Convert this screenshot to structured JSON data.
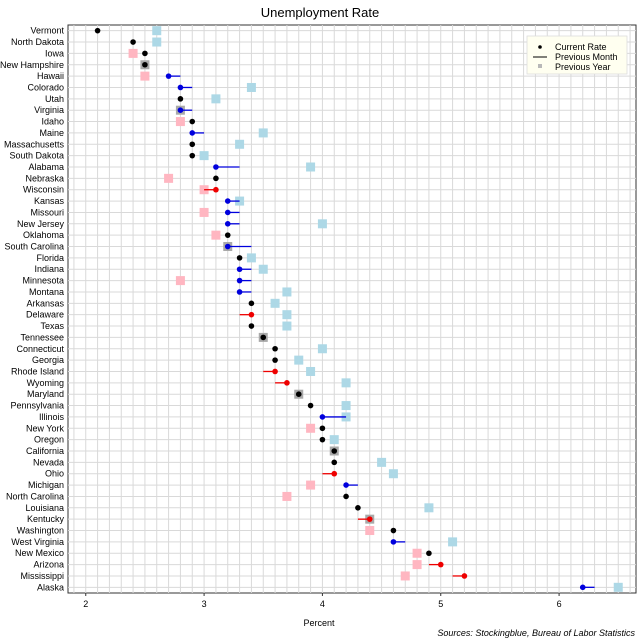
{
  "chart_data": {
    "type": "scatter",
    "title": "Unemployment Rate",
    "xlabel": "Percent",
    "ylabel": "",
    "xlim": [
      1.85,
      6.65
    ],
    "x_ticks": [
      "2",
      "3",
      "4",
      "5",
      "6"
    ],
    "x_tick_values": [
      2,
      3,
      4,
      5,
      6
    ],
    "legend_position": "top-right",
    "legend": {
      "current": "Current Rate",
      "previous_month": "Previous Month",
      "previous_year": "Previous Year"
    },
    "source": "Sources: Stockingblue, Bureau of Labor Statistics",
    "colors": {
      "unchanged": "#000000",
      "decrease": "#0000dd",
      "increase": "#ee0000",
      "year_lower": "#add8e6",
      "year_higher": "#ffb6c1",
      "year_same": "#a9a9a9",
      "grid": "#d9d9d9",
      "legend_bg": "#fffff0"
    },
    "series": [
      {
        "name": "Current Rate",
        "values_key": "states.current"
      },
      {
        "name": "Previous Month",
        "values_key": "states.previous_month"
      },
      {
        "name": "Previous Year",
        "values_key": "states.previous_year"
      }
    ],
    "states": [
      {
        "state": "Vermont",
        "current": 2.1,
        "previous_month": 2.1,
        "previous_year": 2.6
      },
      {
        "state": "North Dakota",
        "current": 2.4,
        "previous_month": 2.4,
        "previous_year": 2.6
      },
      {
        "state": "Iowa",
        "current": 2.5,
        "previous_month": 2.5,
        "previous_year": 2.4
      },
      {
        "state": "New Hampshire",
        "current": 2.5,
        "previous_month": 2.5,
        "previous_year": 2.5
      },
      {
        "state": "Hawaii",
        "current": 2.7,
        "previous_month": 2.8,
        "previous_year": 2.5
      },
      {
        "state": "Colorado",
        "current": 2.8,
        "previous_month": 2.9,
        "previous_year": 3.4
      },
      {
        "state": "Utah",
        "current": 2.8,
        "previous_month": 2.8,
        "previous_year": 3.1
      },
      {
        "state": "Virginia",
        "current": 2.8,
        "previous_month": 2.9,
        "previous_year": 2.8
      },
      {
        "state": "Idaho",
        "current": 2.9,
        "previous_month": 2.9,
        "previous_year": 2.8
      },
      {
        "state": "Maine",
        "current": 2.9,
        "previous_month": 3.0,
        "previous_year": 3.5
      },
      {
        "state": "Massachusetts",
        "current": 2.9,
        "previous_month": 2.9,
        "previous_year": 3.3
      },
      {
        "state": "South Dakota",
        "current": 2.9,
        "previous_month": 2.9,
        "previous_year": 3.0
      },
      {
        "state": "Alabama",
        "current": 3.1,
        "previous_month": 3.3,
        "previous_year": 3.9
      },
      {
        "state": "Nebraska",
        "current": 3.1,
        "previous_month": 3.1,
        "previous_year": 2.7
      },
      {
        "state": "Wisconsin",
        "current": 3.1,
        "previous_month": 3.0,
        "previous_year": 3.0
      },
      {
        "state": "Kansas",
        "current": 3.2,
        "previous_month": 3.3,
        "previous_year": 3.3
      },
      {
        "state": "Missouri",
        "current": 3.2,
        "previous_month": 3.3,
        "previous_year": 3.0
      },
      {
        "state": "New Jersey",
        "current": 3.2,
        "previous_month": 3.3,
        "previous_year": 4.0
      },
      {
        "state": "Oklahoma",
        "current": 3.2,
        "previous_month": 3.2,
        "previous_year": 3.1
      },
      {
        "state": "South Carolina",
        "current": 3.2,
        "previous_month": 3.4,
        "previous_year": 3.2
      },
      {
        "state": "Florida",
        "current": 3.3,
        "previous_month": 3.3,
        "previous_year": 3.4
      },
      {
        "state": "Indiana",
        "current": 3.3,
        "previous_month": 3.4,
        "previous_year": 3.5
      },
      {
        "state": "Minnesota",
        "current": 3.3,
        "previous_month": 3.4,
        "previous_year": 2.8
      },
      {
        "state": "Montana",
        "current": 3.3,
        "previous_month": 3.4,
        "previous_year": 3.7
      },
      {
        "state": "Arkansas",
        "current": 3.4,
        "previous_month": 3.4,
        "previous_year": 3.6
      },
      {
        "state": "Delaware",
        "current": 3.4,
        "previous_month": 3.3,
        "previous_year": 3.7
      },
      {
        "state": "Texas",
        "current": 3.4,
        "previous_month": 3.4,
        "previous_year": 3.7
      },
      {
        "state": "Tennessee",
        "current": 3.5,
        "previous_month": 3.5,
        "previous_year": 3.5
      },
      {
        "state": "Connecticut",
        "current": 3.6,
        "previous_month": 3.6,
        "previous_year": 4.0
      },
      {
        "state": "Georgia",
        "current": 3.6,
        "previous_month": 3.6,
        "previous_year": 3.8
      },
      {
        "state": "Rhode Island",
        "current": 3.6,
        "previous_month": 3.5,
        "previous_year": 3.9
      },
      {
        "state": "Wyoming",
        "current": 3.7,
        "previous_month": 3.6,
        "previous_year": 4.2
      },
      {
        "state": "Maryland",
        "current": 3.8,
        "previous_month": 3.8,
        "previous_year": 3.8
      },
      {
        "state": "Pennsylvania",
        "current": 3.9,
        "previous_month": 3.9,
        "previous_year": 4.2
      },
      {
        "state": "Illinois",
        "current": 4.0,
        "previous_month": 4.2,
        "previous_year": 4.2
      },
      {
        "state": "New York",
        "current": 4.0,
        "previous_month": 4.0,
        "previous_year": 3.9
      },
      {
        "state": "Oregon",
        "current": 4.0,
        "previous_month": 4.0,
        "previous_year": 4.1
      },
      {
        "state": "California",
        "current": 4.1,
        "previous_month": 4.1,
        "previous_year": 4.1
      },
      {
        "state": "Nevada",
        "current": 4.1,
        "previous_month": 4.1,
        "previous_year": 4.5
      },
      {
        "state": "Ohio",
        "current": 4.1,
        "previous_month": 4.0,
        "previous_year": 4.6
      },
      {
        "state": "Michigan",
        "current": 4.2,
        "previous_month": 4.3,
        "previous_year": 3.9
      },
      {
        "state": "North Carolina",
        "current": 4.2,
        "previous_month": 4.2,
        "previous_year": 3.7
      },
      {
        "state": "Louisiana",
        "current": 4.3,
        "previous_month": 4.3,
        "previous_year": 4.9
      },
      {
        "state": "Kentucky",
        "current": 4.4,
        "previous_month": 4.3,
        "previous_year": 4.4
      },
      {
        "state": "Washington",
        "current": 4.6,
        "previous_month": 4.6,
        "previous_year": 4.4
      },
      {
        "state": "West Virginia",
        "current": 4.6,
        "previous_month": 4.7,
        "previous_year": 5.1
      },
      {
        "state": "New Mexico",
        "current": 4.9,
        "previous_month": 4.9,
        "previous_year": 4.8
      },
      {
        "state": "Arizona",
        "current": 5.0,
        "previous_month": 4.9,
        "previous_year": 4.8
      },
      {
        "state": "Mississippi",
        "current": 5.2,
        "previous_month": 5.1,
        "previous_year": 4.7
      },
      {
        "state": "Alaska",
        "current": 6.2,
        "previous_month": 6.3,
        "previous_year": 6.5
      }
    ]
  }
}
